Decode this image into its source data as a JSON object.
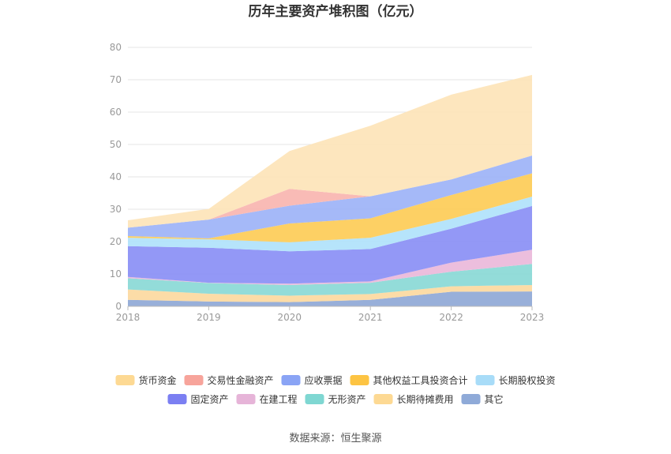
{
  "chart_data": {
    "type": "area",
    "stacked": true,
    "title": "历年主要资产堆积图（亿元）",
    "x": [
      "2018",
      "2019",
      "2020",
      "2021",
      "2022",
      "2023"
    ],
    "ylim": [
      0,
      80
    ],
    "yticks": [
      "0",
      "10",
      "20",
      "30",
      "40",
      "50",
      "60",
      "70",
      "80"
    ],
    "grid": true,
    "legend_position": "bottom",
    "series": [
      {
        "name": "其它",
        "color": "#8fa8d6",
        "values": [
          2.0,
          1.5,
          1.3,
          2.0,
          4.5,
          4.6
        ]
      },
      {
        "name": "长期待摊费用",
        "color": "#fcd9a0",
        "values": [
          3.2,
          2.4,
          2.0,
          1.8,
          1.7,
          2.0
        ]
      },
      {
        "name": "无形资产",
        "color": "#8ad9d6",
        "values": [
          3.5,
          3.3,
          3.3,
          3.5,
          4.5,
          6.5
        ]
      },
      {
        "name": "在建工程",
        "color": "#eab8da",
        "values": [
          0.4,
          0.1,
          0.4,
          0.4,
          2.8,
          4.4
        ]
      },
      {
        "name": "固定资产",
        "color": "#8a8ff5",
        "values": [
          9.5,
          10.8,
          10.0,
          10.0,
          10.5,
          13.5
        ]
      },
      {
        "name": "长期股权投资",
        "color": "#b0e2fb",
        "values": [
          2.6,
          2.6,
          2.8,
          3.5,
          3.0,
          2.9
        ]
      },
      {
        "name": "其他权益工具投资合计",
        "color": "#fdcc57",
        "values": [
          0.5,
          0.3,
          5.8,
          6.0,
          7.4,
          7.2
        ]
      },
      {
        "name": "应收票据",
        "color": "#9db3f7",
        "values": [
          2.6,
          5.8,
          5.5,
          6.8,
          4.8,
          5.5
        ]
      },
      {
        "name": "交易性金融资产",
        "color": "#f9b5b0",
        "values": [
          0.0,
          0.0,
          5.2,
          0.0,
          0.0,
          0.0
        ]
      },
      {
        "name": "货币资金",
        "color": "#fde4b8",
        "values": [
          2.3,
          3.3,
          11.7,
          21.8,
          26.2,
          24.9
        ]
      }
    ],
    "legend": [
      {
        "name": "货币资金",
        "color": "#fdd993"
      },
      {
        "name": "交易性金融资产",
        "color": "#f7a49b"
      },
      {
        "name": "应收票据",
        "color": "#8aa4f5"
      },
      {
        "name": "其他权益工具投资合计",
        "color": "#fdc443"
      },
      {
        "name": "长期股权投资",
        "color": "#a8dcf8"
      },
      {
        "name": "固定资产",
        "color": "#7b7ff2"
      },
      {
        "name": "在建工程",
        "color": "#e6b4d8"
      },
      {
        "name": "无形资产",
        "color": "#7fd7d2"
      },
      {
        "name": "长期待摊费用",
        "color": "#fdd993"
      },
      {
        "name": "其它",
        "color": "#8faad8"
      }
    ]
  },
  "source": "数据来源：恒生聚源"
}
